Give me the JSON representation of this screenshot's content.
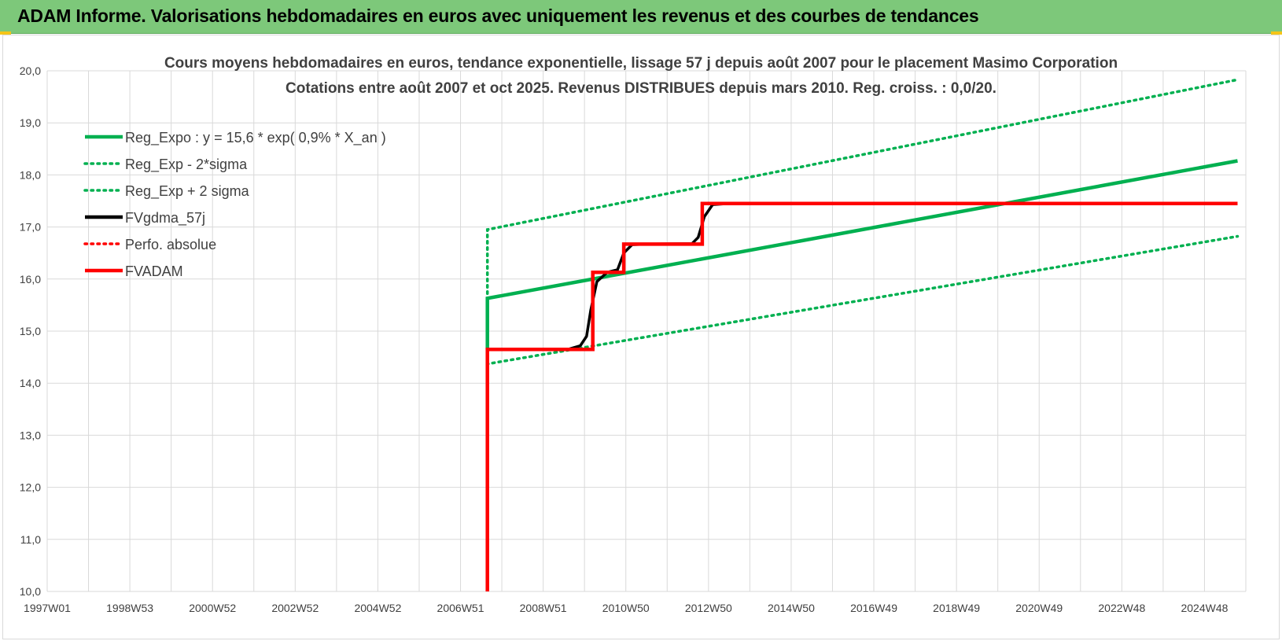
{
  "banner": {
    "title": "ADAM Informe. Valorisations hebdomadaires en euros avec uniquement les revenus et des courbes de tendances"
  },
  "colors": {
    "banner_bg": "#7dc87a",
    "green": "#00b050",
    "red": "#ff0000",
    "black": "#000000",
    "grid": "#d9d9d9",
    "text": "#404040"
  },
  "chart_data": {
    "type": "line",
    "title_lines": [
      "Cours moyens hebdomadaires en euros, tendance exponentielle, lissage 57 j depuis août 2007 pour le placement Masimo Corporation",
      "Cotations entre août 2007 et oct 2025.  Revenus DISTRIBUES depuis mars 2010. Reg. croiss. : 0,0/20."
    ],
    "x_unit": "year",
    "xlim": [
      1997.0,
      2026.0
    ],
    "ylim": [
      10,
      20
    ],
    "y_ticks": [
      "10,0",
      "11,0",
      "12,0",
      "13,0",
      "14,0",
      "15,0",
      "16,0",
      "17,0",
      "18,0",
      "19,0",
      "20,0"
    ],
    "x_tick_labels": [
      "1997W01",
      "1998W53",
      "2000W52",
      "2002W52",
      "2004W52",
      "2006W51",
      "2008W51",
      "2010W50",
      "2012W50",
      "2014W50",
      "2016W49",
      "2018W49",
      "2020W49",
      "2022W48",
      "2024W48"
    ],
    "grid": true,
    "legend_position": "top-left",
    "series": [
      {
        "name": "Reg_Expo : y = 15,6 * exp( 0,9% *  X_an )",
        "color": "#00b050",
        "style": "solid",
        "points": [
          [
            2007.65,
            14.65
          ],
          [
            2007.65,
            15.63
          ],
          [
            2025.8,
            18.27
          ]
        ]
      },
      {
        "name": "Reg_Exp - 2*sigma",
        "color": "#00b050",
        "style": "dotted",
        "points": [
          [
            2007.65,
            15.6
          ],
          [
            2007.65,
            14.37
          ],
          [
            2025.8,
            16.82
          ]
        ]
      },
      {
        "name": "Reg_Exp + 2 sigma",
        "color": "#00b050",
        "style": "dotted",
        "points": [
          [
            2007.65,
            15.6
          ],
          [
            2007.65,
            16.95
          ],
          [
            2025.8,
            19.83
          ]
        ]
      },
      {
        "name": "FVgdma_57j",
        "color": "#000000",
        "style": "solid",
        "points": [
          [
            2007.65,
            14.65
          ],
          [
            2009.6,
            14.65
          ],
          [
            2009.9,
            14.72
          ],
          [
            2010.05,
            14.9
          ],
          [
            2010.15,
            15.4
          ],
          [
            2010.3,
            15.95
          ],
          [
            2010.55,
            16.13
          ],
          [
            2010.8,
            16.18
          ],
          [
            2010.95,
            16.5
          ],
          [
            2011.15,
            16.66
          ],
          [
            2011.5,
            16.67
          ],
          [
            2012.6,
            16.68
          ],
          [
            2012.75,
            16.8
          ],
          [
            2012.9,
            17.2
          ],
          [
            2013.1,
            17.43
          ],
          [
            2013.5,
            17.45
          ],
          [
            2025.8,
            17.45
          ]
        ]
      },
      {
        "name": "Perfo. absolue",
        "color": "#ff0000",
        "style": "dotted",
        "points": []
      },
      {
        "name": "FVADAM",
        "color": "#ff0000",
        "style": "solid",
        "points": [
          [
            2007.65,
            10.0
          ],
          [
            2007.65,
            14.65
          ],
          [
            2010.2,
            14.65
          ],
          [
            2010.2,
            16.13
          ],
          [
            2010.95,
            16.13
          ],
          [
            2010.95,
            16.67
          ],
          [
            2012.85,
            16.67
          ],
          [
            2012.85,
            17.45
          ],
          [
            2025.8,
            17.45
          ]
        ]
      }
    ]
  }
}
